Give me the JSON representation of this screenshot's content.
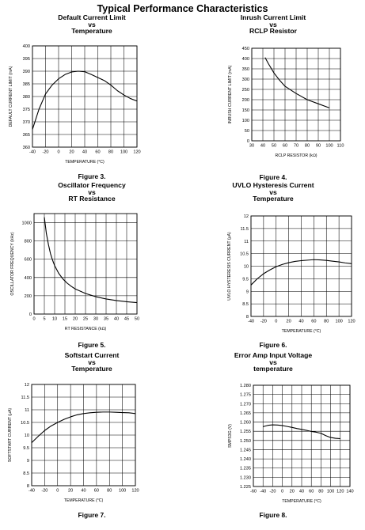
{
  "page": {
    "title": "Typical Performance Characteristics"
  },
  "chart_data": [
    {
      "type": "line",
      "title_lines": [
        "Default Current Limit",
        "vs",
        "Temperature"
      ],
      "figure": "Figure 3.",
      "xlabel": "TEMPERATURE (°C)",
      "ylabel": "DEFAULT CURRENT LIMIT (mA)",
      "xlim": [
        -40,
        120
      ],
      "ylim": [
        360,
        400
      ],
      "xticks": [
        -40,
        -20,
        0,
        20,
        40,
        60,
        80,
        100,
        120
      ],
      "yticks": [
        360,
        365,
        370,
        375,
        380,
        385,
        390,
        395,
        400
      ],
      "xtick_labels": [
        "-40",
        "-20",
        "0",
        "20",
        "40",
        "60",
        "80",
        "100",
        "120"
      ],
      "ytick_labels": [
        "360",
        "365",
        "370",
        "375",
        "380",
        "385",
        "390",
        "395",
        "400"
      ],
      "grid": true,
      "series": [
        {
          "x": [
            -40,
            -30,
            -20,
            -10,
            0,
            10,
            20,
            30,
            40,
            50,
            60,
            70,
            80,
            90,
            100,
            110,
            120
          ],
          "y": [
            367,
            375,
            381,
            384.5,
            387,
            388.7,
            389.7,
            390,
            389.8,
            388.7,
            387.5,
            386.3,
            384.5,
            382.3,
            380.6,
            379.2,
            378.2
          ]
        }
      ]
    },
    {
      "type": "line",
      "title_lines": [
        "Inrush Current Limit",
        "vs",
        "RCLP Resistor"
      ],
      "figure": "Figure 4.",
      "xlabel": "RCLP RESISTOR (kΩ)",
      "ylabel": "INRUSH CURRENT LIMIT (mA)",
      "xlim": [
        30,
        110
      ],
      "ylim": [
        0,
        450
      ],
      "xticks": [
        30,
        40,
        50,
        60,
        70,
        80,
        90,
        100,
        110
      ],
      "yticks": [
        0,
        50,
        100,
        150,
        200,
        250,
        300,
        350,
        400,
        450
      ],
      "xtick_labels": [
        "30",
        "40",
        "50",
        "60",
        "70",
        "80",
        "90",
        "100",
        "110"
      ],
      "ytick_labels": [
        "0",
        "50",
        "100",
        "150",
        "200",
        "250",
        "300",
        "350",
        "400",
        "450"
      ],
      "grid": true,
      "series": [
        {
          "x": [
            42,
            45,
            50,
            55,
            60,
            70,
            80,
            90,
            100
          ],
          "y": [
            405,
            375,
            330,
            295,
            265,
            230,
            200,
            180,
            160
          ]
        }
      ]
    },
    {
      "type": "line",
      "title_lines": [
        "Oscillator Frequency",
        "vs",
        "RT Resistance"
      ],
      "figure": "Figure 5.",
      "xlabel": "RT RESISTANCE (kΩ)",
      "ylabel": "OSCILLATOR FREQUENCY (kHz)",
      "xlim": [
        0,
        50
      ],
      "ylim": [
        0,
        1100
      ],
      "xticks": [
        0,
        5,
        10,
        15,
        20,
        25,
        30,
        35,
        40,
        45,
        50
      ],
      "yticks": [
        0,
        200,
        400,
        600,
        800,
        1000
      ],
      "xtick_labels": [
        "0",
        "5",
        "10",
        "15",
        "20",
        "25",
        "30",
        "35",
        "40",
        "45",
        "50"
      ],
      "ytick_labels": [
        "0",
        "200",
        "400",
        "600",
        "800",
        "1000"
      ],
      "grid": true,
      "series": [
        {
          "x": [
            5,
            6,
            7,
            8,
            9,
            10,
            12,
            14,
            16,
            18,
            20,
            25,
            30,
            35,
            40,
            45,
            50
          ],
          "y": [
            1060,
            880,
            760,
            660,
            590,
            530,
            445,
            385,
            340,
            305,
            275,
            225,
            190,
            165,
            148,
            135,
            125
          ]
        }
      ]
    },
    {
      "type": "line",
      "title_lines": [
        "UVLO Hysteresis Current",
        "vs",
        "Temperature"
      ],
      "figure": "Figure 6.",
      "xlabel": "TEMPERATURE (°C)",
      "ylabel": "UVLO HYSTERESIS CURRENT (µA)",
      "xlim": [
        -40,
        120
      ],
      "ylim": [
        8,
        12
      ],
      "xticks": [
        -40,
        -20,
        0,
        20,
        40,
        60,
        80,
        100,
        120
      ],
      "yticks": [
        8,
        8.5,
        9,
        9.5,
        10,
        10.5,
        11,
        11.5,
        12
      ],
      "xtick_labels": [
        "-40",
        "-20",
        "0",
        "20",
        "40",
        "60",
        "80",
        "100",
        "120"
      ],
      "ytick_labels": [
        "8",
        "8.5",
        "9",
        "9.5",
        "10",
        "10.5",
        "11",
        "11.5",
        "12"
      ],
      "grid": true,
      "series": [
        {
          "x": [
            -40,
            -30,
            -20,
            -10,
            0,
            10,
            20,
            30,
            40,
            50,
            60,
            70,
            80,
            90,
            100,
            110,
            120
          ],
          "y": [
            9.25,
            9.5,
            9.7,
            9.85,
            9.98,
            10.07,
            10.14,
            10.19,
            10.22,
            10.24,
            10.26,
            10.25,
            10.23,
            10.2,
            10.17,
            10.13,
            10.1
          ]
        }
      ]
    },
    {
      "type": "line",
      "title_lines": [
        "Softstart Current",
        "vs",
        "Temperature"
      ],
      "figure": "Figure 7.",
      "xlabel": "TEMPERATURE (°C)",
      "ylabel": "SOFTSTART CURRENT (µA)",
      "xlim": [
        -40,
        120
      ],
      "ylim": [
        8,
        12
      ],
      "xticks": [
        -40,
        -20,
        0,
        20,
        40,
        60,
        80,
        100,
        120
      ],
      "yticks": [
        8,
        8.5,
        9,
        9.5,
        10,
        10.5,
        11,
        11.5,
        12
      ],
      "xtick_labels": [
        "-40",
        "-20",
        "0",
        "20",
        "40",
        "60",
        "80",
        "100",
        "120"
      ],
      "ytick_labels": [
        "8",
        "8.5",
        "9",
        "9.5",
        "10",
        "10.5",
        "11",
        "11.5",
        "12"
      ],
      "grid": true,
      "series": [
        {
          "x": [
            -40,
            -30,
            -20,
            -10,
            0,
            10,
            20,
            30,
            40,
            50,
            60,
            70,
            80,
            90,
            100,
            110,
            120
          ],
          "y": [
            9.7,
            9.95,
            10.18,
            10.36,
            10.5,
            10.62,
            10.72,
            10.8,
            10.85,
            10.88,
            10.9,
            10.91,
            10.91,
            10.9,
            10.89,
            10.88,
            10.85
          ]
        }
      ]
    },
    {
      "type": "line",
      "title_lines": [
        "Error Amp Input Voltage",
        "vs",
        "temperature"
      ],
      "figure": "Figure 8.",
      "xlabel": "TEMPERATURE (°C)",
      "ylabel": "SMPS3G (V)",
      "xlim": [
        -60,
        140
      ],
      "ylim": [
        1.225,
        1.28
      ],
      "xticks": [
        -60,
        -40,
        -20,
        0,
        20,
        40,
        60,
        80,
        100,
        120,
        140
      ],
      "yticks": [
        1.225,
        1.23,
        1.235,
        1.24,
        1.245,
        1.25,
        1.255,
        1.26,
        1.265,
        1.27,
        1.275,
        1.28
      ],
      "xtick_labels": [
        "-60",
        "-40",
        "-20",
        "0",
        "20",
        "40",
        "60",
        "80",
        "100",
        "120",
        "140"
      ],
      "ytick_labels": [
        "1.225",
        "1.230",
        "1.235",
        "1.240",
        "1.245",
        "1.250",
        "1.255",
        "1.260",
        "1.265",
        "1.270",
        "1.275",
        "1.280"
      ],
      "grid": true,
      "series": [
        {
          "x": [
            -40,
            -30,
            -20,
            -10,
            0,
            10,
            20,
            30,
            40,
            50,
            60,
            70,
            80,
            90,
            100,
            110,
            120
          ],
          "y": [
            1.2575,
            1.2582,
            1.2585,
            1.2584,
            1.2581,
            1.2576,
            1.2571,
            1.2565,
            1.256,
            1.2555,
            1.2549,
            1.2545,
            1.2539,
            1.2526,
            1.2516,
            1.2512,
            1.251
          ]
        }
      ]
    }
  ]
}
